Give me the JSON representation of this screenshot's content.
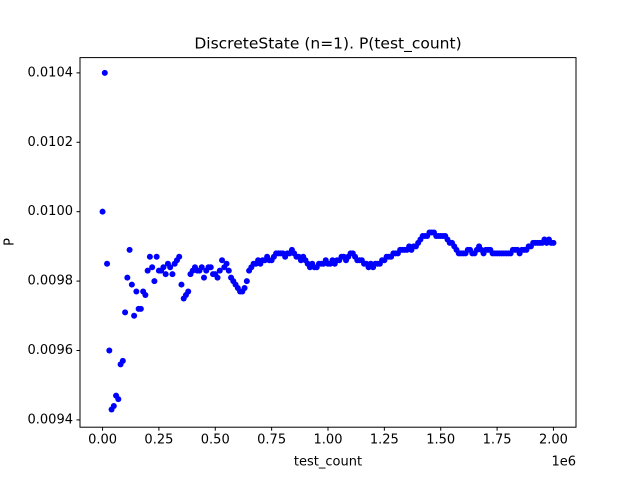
{
  "chart_data": {
    "type": "scatter",
    "title": "DiscreteState (n=1). P(test_count)",
    "x_label": "test_count",
    "y_label": "P",
    "x_offset_label": "1e6",
    "color": "#0000ff",
    "xlim": [
      -100000,
      2100000
    ],
    "ylim": [
      0.009379,
      0.010444
    ],
    "xticks": [
      {
        "value": 0,
        "label": "0.00"
      },
      {
        "value": 250000,
        "label": "0.25"
      },
      {
        "value": 500000,
        "label": "0.50"
      },
      {
        "value": 750000,
        "label": "0.75"
      },
      {
        "value": 1000000,
        "label": "1.00"
      },
      {
        "value": 1250000,
        "label": "1.25"
      },
      {
        "value": 1500000,
        "label": "1.50"
      },
      {
        "value": 1750000,
        "label": "1.75"
      },
      {
        "value": 2000000,
        "label": "2.00"
      }
    ],
    "yticks": [
      0.0094,
      0.0096,
      0.0098,
      {
        "value": 0.01,
        "label": "0.0100"
      },
      0.0102,
      0.0104
    ],
    "x": [
      0,
      10000,
      20000,
      30000,
      40000,
      50000,
      60000,
      70000,
      80000,
      90000,
      100000,
      110000,
      120000,
      130000,
      140000,
      150000,
      160000,
      170000,
      180000,
      190000,
      200000,
      210000,
      220000,
      230000,
      240000,
      250000,
      260000,
      270000,
      280000,
      290000,
      300000,
      310000,
      320000,
      330000,
      340000,
      350000,
      360000,
      370000,
      380000,
      390000,
      400000,
      410000,
      420000,
      430000,
      440000,
      450000,
      460000,
      470000,
      480000,
      490000,
      500000,
      510000,
      520000,
      530000,
      540000,
      550000,
      560000,
      570000,
      580000,
      590000,
      600000,
      610000,
      620000,
      630000,
      640000,
      650000,
      660000,
      670000,
      680000,
      690000,
      700000,
      710000,
      720000,
      730000,
      740000,
      750000,
      760000,
      770000,
      780000,
      790000,
      800000,
      810000,
      820000,
      830000,
      840000,
      850000,
      860000,
      870000,
      880000,
      890000,
      900000,
      910000,
      920000,
      930000,
      940000,
      950000,
      960000,
      970000,
      980000,
      990000,
      1000000,
      1010000,
      1020000,
      1030000,
      1040000,
      1050000,
      1060000,
      1070000,
      1080000,
      1090000,
      1100000,
      1110000,
      1120000,
      1130000,
      1140000,
      1150000,
      1160000,
      1170000,
      1180000,
      1190000,
      1200000,
      1210000,
      1220000,
      1230000,
      1240000,
      1250000,
      1260000,
      1270000,
      1280000,
      1290000,
      1300000,
      1310000,
      1320000,
      1330000,
      1340000,
      1350000,
      1360000,
      1370000,
      1380000,
      1390000,
      1400000,
      1410000,
      1420000,
      1430000,
      1440000,
      1450000,
      1460000,
      1470000,
      1480000,
      1490000,
      1500000,
      1510000,
      1520000,
      1530000,
      1540000,
      1550000,
      1560000,
      1570000,
      1580000,
      1590000,
      1600000,
      1610000,
      1620000,
      1630000,
      1640000,
      1650000,
      1660000,
      1670000,
      1680000,
      1690000,
      1700000,
      1710000,
      1720000,
      1730000,
      1740000,
      1750000,
      1760000,
      1770000,
      1780000,
      1790000,
      1800000,
      1810000,
      1820000,
      1830000,
      1840000,
      1850000,
      1860000,
      1870000,
      1880000,
      1890000,
      1900000,
      1910000,
      1920000,
      1930000,
      1940000,
      1950000,
      1960000,
      1970000,
      1980000,
      1990000,
      2000000
    ],
    "values": [
      0.01,
      0.0104,
      0.00985,
      0.0096,
      0.00943,
      0.00944,
      0.00947,
      0.00946,
      0.00956,
      0.00957,
      0.00971,
      0.00981,
      0.00989,
      0.00979,
      0.0097,
      0.00977,
      0.00972,
      0.00972,
      0.00977,
      0.00976,
      0.00983,
      0.00987,
      0.00984,
      0.0098,
      0.00987,
      0.00983,
      0.00983,
      0.00984,
      0.00982,
      0.00985,
      0.00984,
      0.00982,
      0.00985,
      0.00986,
      0.00987,
      0.00979,
      0.00975,
      0.00976,
      0.00977,
      0.00982,
      0.00983,
      0.00984,
      0.00983,
      0.00983,
      0.00984,
      0.00981,
      0.00983,
      0.00984,
      0.00984,
      0.00982,
      0.00982,
      0.00981,
      0.00983,
      0.00986,
      0.00984,
      0.00985,
      0.00983,
      0.00981,
      0.0098,
      0.00979,
      0.00978,
      0.00977,
      0.00977,
      0.00978,
      0.0098,
      0.00983,
      0.00984,
      0.00985,
      0.00985,
      0.00986,
      0.00985,
      0.00986,
      0.00986,
      0.00987,
      0.00986,
      0.00986,
      0.00987,
      0.00988,
      0.00988,
      0.00988,
      0.00988,
      0.00987,
      0.00988,
      0.00988,
      0.00989,
      0.00988,
      0.00987,
      0.00987,
      0.00986,
      0.00987,
      0.00986,
      0.00985,
      0.00984,
      0.00985,
      0.00984,
      0.00984,
      0.00985,
      0.00985,
      0.00985,
      0.00986,
      0.00985,
      0.00985,
      0.00986,
      0.00985,
      0.00986,
      0.00986,
      0.00987,
      0.00987,
      0.00986,
      0.00987,
      0.00988,
      0.00988,
      0.00987,
      0.00986,
      0.00986,
      0.00986,
      0.00985,
      0.00985,
      0.00984,
      0.00985,
      0.00984,
      0.00985,
      0.00985,
      0.00985,
      0.00986,
      0.00986,
      0.00987,
      0.00987,
      0.00987,
      0.00988,
      0.00988,
      0.00988,
      0.00989,
      0.00989,
      0.00989,
      0.00989,
      0.0099,
      0.00989,
      0.0099,
      0.0099,
      0.00991,
      0.00992,
      0.00993,
      0.00993,
      0.00993,
      0.00994,
      0.00994,
      0.00994,
      0.00993,
      0.00993,
      0.00993,
      0.00993,
      0.00993,
      0.00992,
      0.00991,
      0.00991,
      0.0099,
      0.00989,
      0.00988,
      0.00988,
      0.00988,
      0.00988,
      0.00989,
      0.00989,
      0.00988,
      0.00988,
      0.00989,
      0.0099,
      0.00989,
      0.00988,
      0.00989,
      0.00989,
      0.00989,
      0.00988,
      0.00988,
      0.00988,
      0.00988,
      0.00988,
      0.00988,
      0.00988,
      0.00988,
      0.00988,
      0.00989,
      0.00989,
      0.00989,
      0.00988,
      0.00989,
      0.00989,
      0.00989,
      0.0099,
      0.0099,
      0.00991,
      0.00991,
      0.00991,
      0.00991,
      0.00991,
      0.00992,
      0.00991,
      0.00992,
      0.00991,
      0.00991
    ]
  }
}
